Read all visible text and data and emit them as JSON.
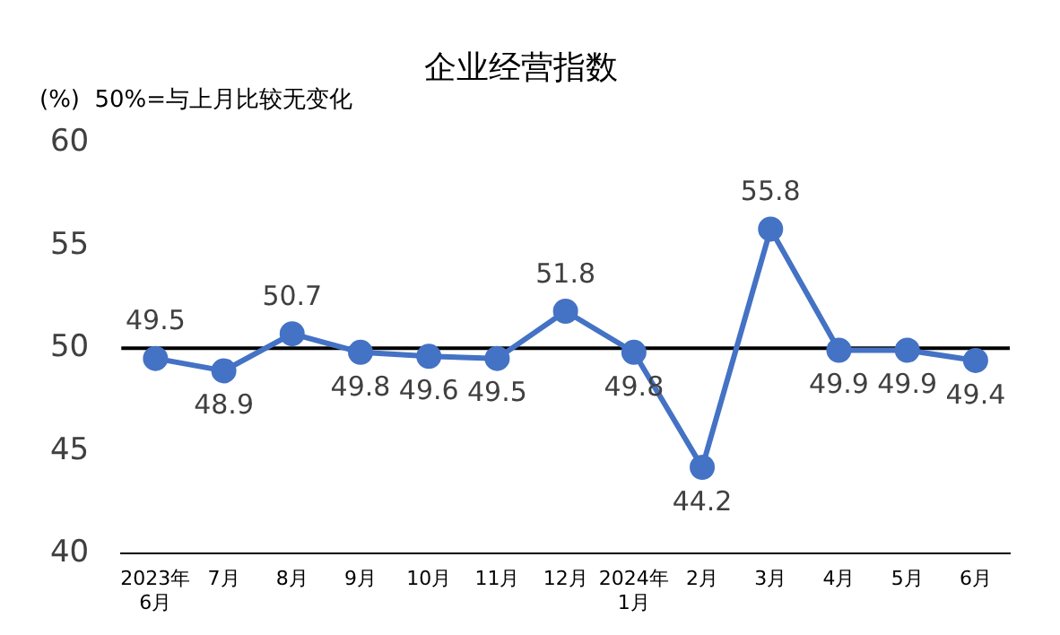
{
  "chart_data": {
    "type": "line",
    "title": "企业经营指数",
    "annotations": [
      "(%)  50%=与上月比较无变化"
    ],
    "categories": [
      "2023年\n6月",
      "7月",
      "8月",
      "9月",
      "10月",
      "11月",
      "12月",
      "2024年\n1月",
      "2月",
      "3月",
      "4月",
      "5月",
      "6月"
    ],
    "values": [
      49.5,
      48.9,
      50.7,
      49.8,
      49.6,
      49.5,
      51.8,
      49.8,
      44.2,
      55.8,
      49.9,
      49.9,
      49.4
    ],
    "color": "#4472c4",
    "marker": "circle",
    "ylim": [
      40,
      60
    ],
    "yticks": [
      40,
      45,
      50,
      55,
      60
    ],
    "ref_lines": [
      {
        "axis": "y",
        "value": 50,
        "color": "#000000"
      }
    ],
    "data_labels": true,
    "legend": false
  }
}
